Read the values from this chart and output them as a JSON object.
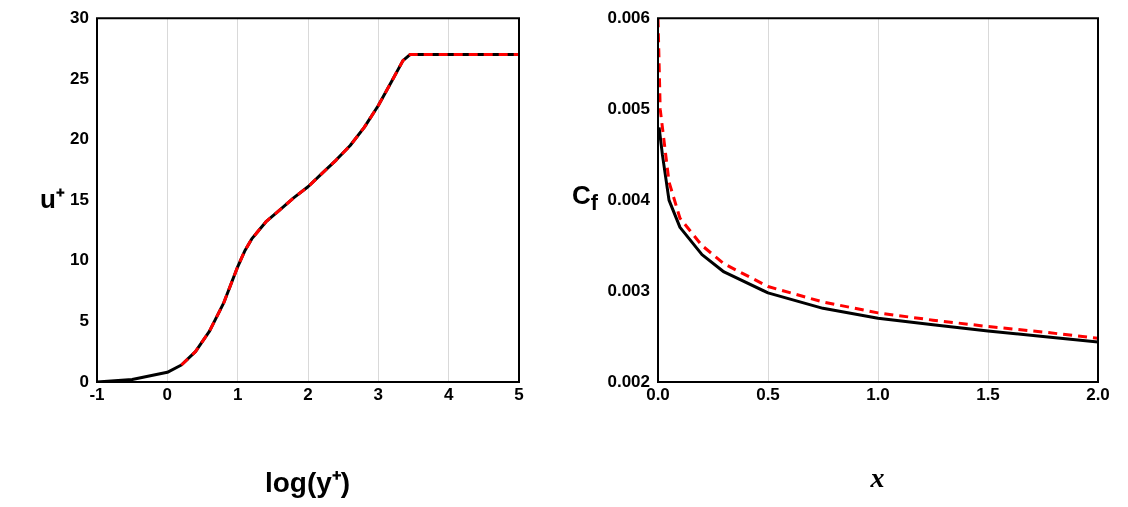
{
  "chart_data": [
    {
      "type": "line",
      "xlabel": "log(y⁺)",
      "ylabel": "u⁺",
      "xlim": [
        -1,
        5
      ],
      "ylim": [
        0,
        30
      ],
      "xticks": [
        -1,
        0,
        1,
        2,
        3,
        4,
        5
      ],
      "yticks": [
        0,
        5,
        10,
        15,
        20,
        25,
        30
      ],
      "grid": "x",
      "legend": false,
      "marker": "none",
      "series": [
        {
          "color": "#000000",
          "line_style": "solid",
          "x": [
            -1,
            -0.5,
            0,
            0.2,
            0.4,
            0.6,
            0.8,
            0.9,
            1.0,
            1.1,
            1.2,
            1.4,
            1.6,
            1.8,
            2.0,
            2.2,
            2.4,
            2.6,
            2.8,
            3.0,
            3.2,
            3.35,
            3.45,
            5
          ],
          "values": [
            0,
            0.2,
            0.8,
            1.4,
            2.5,
            4.2,
            6.5,
            8,
            9.5,
            10.8,
            11.8,
            13.2,
            14.2,
            15.2,
            16.1,
            17.2,
            18.3,
            19.5,
            21,
            22.8,
            24.9,
            26.5,
            27,
            27
          ]
        },
        {
          "color": "#ff0000",
          "line_style": "dashed",
          "x": [
            0.2,
            0.4,
            0.6,
            0.8,
            0.9,
            1.0,
            1.1,
            1.2,
            1.4,
            1.6,
            1.8,
            2.0,
            2.2,
            2.4,
            2.6,
            2.8,
            3.0,
            3.2,
            3.35,
            3.45,
            5
          ],
          "values": [
            1.4,
            2.5,
            4.2,
            6.5,
            8,
            9.5,
            10.8,
            11.8,
            13.2,
            14.2,
            15.2,
            16.1,
            17.2,
            18.3,
            19.5,
            21,
            22.8,
            24.9,
            26.5,
            27,
            27
          ]
        }
      ]
    },
    {
      "type": "line",
      "xlabel": "x",
      "ylabel": "C$_{f}$",
      "xlim": [
        0,
        2
      ],
      "ylim": [
        0.002,
        0.006
      ],
      "xticks": [
        {
          "value": 0,
          "label": "0.0"
        },
        0.5,
        {
          "value": 1,
          "label": "1.0"
        },
        1.5,
        {
          "value": 2,
          "label": "2.0"
        }
      ],
      "yticks": [
        0.002,
        0.003,
        0.004,
        0.005,
        0.006
      ],
      "grid": "x",
      "legend": false,
      "marker": "none",
      "series": [
        {
          "color": "#000000",
          "line_style": "solid",
          "x": [
            0.005,
            0.02,
            0.05,
            0.1,
            0.2,
            0.3,
            0.5,
            0.75,
            1.0,
            1.25,
            1.5,
            1.75,
            2.0
          ],
          "values": [
            0.0048,
            0.0045,
            0.004,
            0.0037,
            0.0034,
            0.00321,
            0.00298,
            0.00281,
            0.0027,
            0.00263,
            0.00256,
            0.0025,
            0.00244
          ]
        },
        {
          "color": "#ff0000",
          "line_style": "dashed",
          "x": [
            0,
            0.01,
            0.05,
            0.1,
            0.2,
            0.3,
            0.5,
            0.75,
            1.0,
            1.25,
            1.5,
            1.75,
            2.0
          ],
          "values": [
            0.006,
            0.005,
            0.0042,
            0.0038,
            0.0035,
            0.0033,
            0.00305,
            0.00288,
            0.00276,
            0.00268,
            0.00261,
            0.00255,
            0.00248
          ]
        }
      ]
    }
  ]
}
